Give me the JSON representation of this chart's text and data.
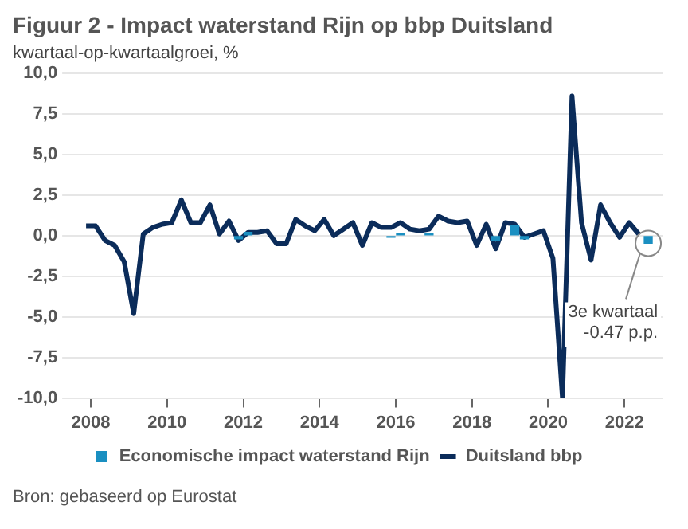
{
  "chart_data": {
    "type": "line",
    "title": "Figuur 2 - Impact waterstand Rijn op bbp Duitsland",
    "subtitle": "kwartaal-op-kwartaalgroei, %",
    "x": [
      2007.875,
      2008.125,
      2008.375,
      2008.625,
      2008.875,
      2009.125,
      2009.375,
      2009.625,
      2009.875,
      2010.125,
      2010.375,
      2010.625,
      2010.875,
      2011.125,
      2011.375,
      2011.625,
      2011.875,
      2012.125,
      2012.375,
      2012.625,
      2012.875,
      2013.125,
      2013.375,
      2013.625,
      2013.875,
      2014.125,
      2014.375,
      2014.625,
      2014.875,
      2015.125,
      2015.375,
      2015.625,
      2015.875,
      2016.125,
      2016.375,
      2016.625,
      2016.875,
      2017.125,
      2017.375,
      2017.625,
      2017.875,
      2018.125,
      2018.375,
      2018.625,
      2018.875,
      2019.125,
      2019.375,
      2019.625,
      2019.875,
      2020.125,
      2020.375,
      2020.625,
      2020.875,
      2021.125,
      2021.375,
      2021.625,
      2021.875,
      2022.125,
      2022.375
    ],
    "series": [
      {
        "name": "Economische impact waterstand Rijn",
        "type": "bar",
        "color": "#1a8fc1",
        "x": [
          2011.875,
          2012.125,
          2015.875,
          2016.125,
          2016.875,
          2018.625,
          2019.125,
          2019.375,
          2022.625
        ],
        "values": [
          -0.2,
          0.2,
          -0.1,
          0.1,
          0.1,
          -0.3,
          0.6,
          -0.2,
          -0.47
        ]
      },
      {
        "name": "Duitsland bbp",
        "color": "#0b2c5a",
        "values": [
          0.6,
          0.6,
          -0.3,
          -0.6,
          -1.6,
          -4.8,
          0.1,
          0.5,
          0.7,
          0.8,
          2.2,
          0.8,
          0.8,
          1.9,
          0.1,
          0.9,
          -0.3,
          0.2,
          0.2,
          0.3,
          -0.5,
          -0.5,
          1.0,
          0.6,
          0.3,
          1.0,
          0.0,
          0.4,
          0.8,
          -0.6,
          0.8,
          0.5,
          0.5,
          0.8,
          0.4,
          0.3,
          0.4,
          1.2,
          0.9,
          0.8,
          0.9,
          -0.6,
          0.7,
          -0.8,
          0.8,
          0.7,
          -0.1,
          0.1,
          0.3,
          -1.4,
          -10.0,
          8.6,
          0.8,
          -1.5,
          1.9,
          0.8,
          -0.1,
          0.8,
          0.1
        ]
      }
    ],
    "xlim": [
      2007.5,
      2023
    ],
    "xticks": [
      2008,
      2010,
      2012,
      2014,
      2016,
      2018,
      2020,
      2022
    ],
    "ylim": [
      -10,
      10
    ],
    "yticks": [
      {
        "value": -10,
        "label": "-10,0"
      },
      {
        "value": -7.5,
        "label": "-7,5"
      },
      {
        "value": -5,
        "label": "-5,0"
      },
      {
        "value": -2.5,
        "label": "-2,5"
      },
      {
        "value": 0,
        "label": "0,0"
      },
      {
        "value": 2.5,
        "label": "2,5"
      },
      {
        "value": 5,
        "label": "5,0"
      },
      {
        "value": 7.5,
        "label": "7,5"
      },
      {
        "value": 10,
        "label": "10,0"
      }
    ],
    "grid": "y",
    "legend": "bottom",
    "marker": "none",
    "line_style": "solid",
    "annotations": [
      {
        "text": "3e kwartaal\n-0.47 p.p.",
        "x": 2022.625,
        "y": -0.47
      },
      "Bron: gebaseerd op Eurostat"
    ]
  }
}
